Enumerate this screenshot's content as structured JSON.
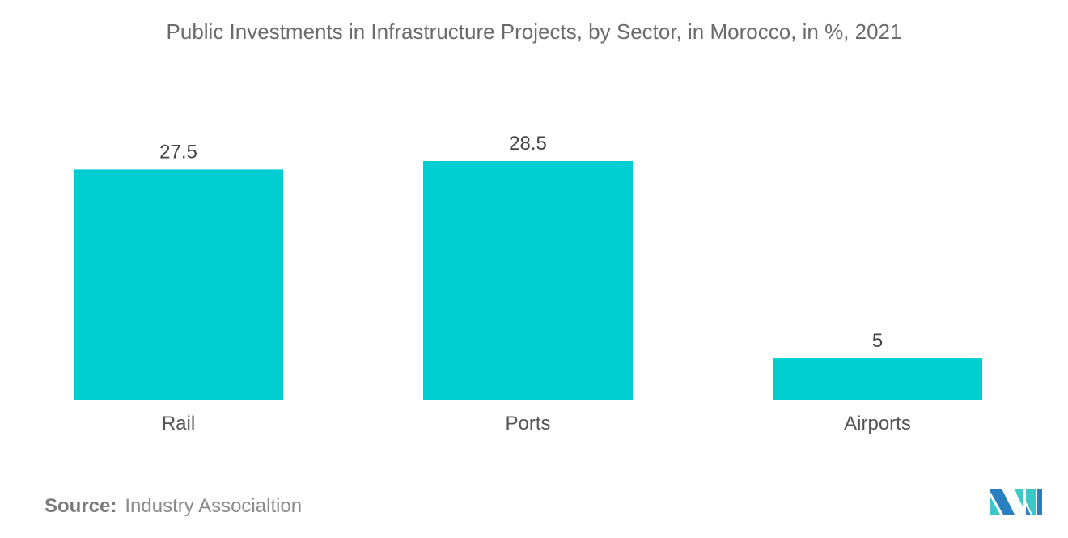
{
  "chart_data": {
    "type": "bar",
    "title": "Public Investments in Infrastructure Projects, by Sector, in Morocco, in %, 2021",
    "categories": [
      "Rail",
      "Ports",
      "Airports"
    ],
    "values": [
      27.5,
      28.5,
      5
    ],
    "data_labels": [
      "27.5",
      "28.5",
      "5"
    ],
    "xlabel": "",
    "ylabel": "",
    "ylim": [
      0,
      28.5
    ],
    "grid": false,
    "bar_color": "#00CED1"
  },
  "source": {
    "label": "Source:",
    "text": "Industry Associaltion"
  },
  "colors": {
    "logo_dark": "#2a7fc1",
    "logo_light": "#3cc7c9"
  }
}
